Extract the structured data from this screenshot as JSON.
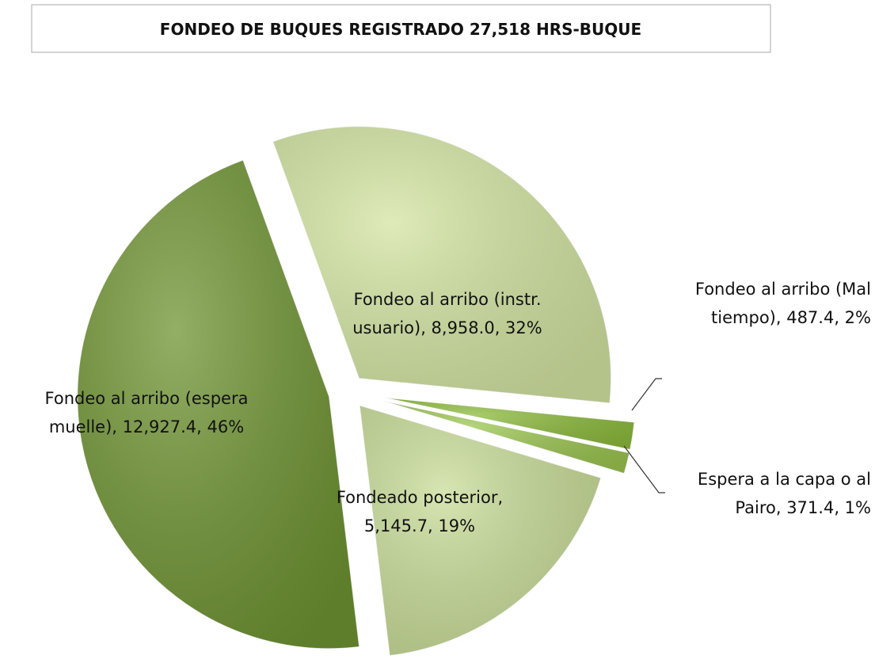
{
  "chart_data": {
    "type": "pie",
    "title": "FONDEO DE BUQUES REGISTRADO 27,518 HRS-BUQUE",
    "labels": [
      [
        "Fondeo al arribo (instr.",
        "usuario), 8,958.0, 32%"
      ],
      [
        "Fondeo al arribo (Mal",
        "tiempo), 487.4, 2%"
      ],
      [
        "Espera a la capa o al",
        "Pairo, 371.4, 1%"
      ],
      [
        "Fondeado posterior,",
        "5,145.7, 19%"
      ],
      [
        "Fondeo al arribo (espera",
        "muelle), 12,927.4, 46%"
      ]
    ],
    "values": [
      8958.0,
      487.4,
      371.4,
      5145.7,
      12927.4
    ],
    "colors": [
      "#d3e5a2",
      "#8dbb3c",
      "#9cc650",
      "#c9dd98",
      "#6f9432"
    ]
  }
}
